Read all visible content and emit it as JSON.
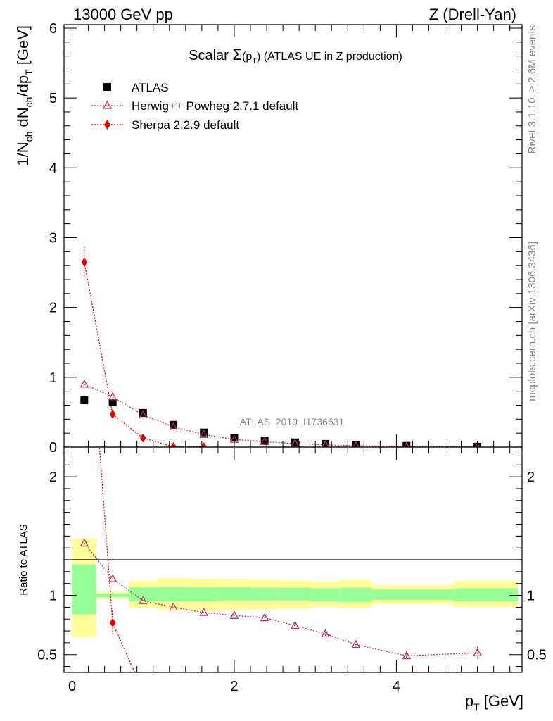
{
  "header": {
    "left": "13000 GeV pp",
    "right": "Z (Drell-Yan)"
  },
  "main_title": {
    "prefix": "Scalar ",
    "sigma": "Σ",
    "arg_open": "(p",
    "arg_sub": "T",
    "arg_close": ")",
    "suffix": " (ATLAS UE in Z production)"
  },
  "side_labels": {
    "rivet": "Rivet 3.1.10, ≥ 2.6M events",
    "mcplots": "mcplots.cern.ch [arXiv:1306.3436]"
  },
  "watermark": "ATLAS_2019_I1736531",
  "y_axis_label": {
    "a": "1/N",
    "a_sub": "ch",
    "b": " dN",
    "b_sub": "ch",
    "c": "/dp",
    "c_sub": "T",
    "d": " [GeV]"
  },
  "ratio_ylabel": "Ratio to ATLAS",
  "x_axis_label": {
    "main": "p",
    "sub": "T",
    "unit": " [GeV]"
  },
  "legend": {
    "atlas": "ATLAS",
    "herwig": "Herwig++ Powheg 2.7.1 default",
    "sherpa": "Sherpa 2.2.9 default"
  },
  "colors": {
    "data": "#000000",
    "herwig": "#c03060",
    "sherpa": "#e00000",
    "band_inner": "#99ff99",
    "band_outer": "#ffff99"
  },
  "chart_data": {
    "type": "scatter",
    "x_ticks": [
      "0",
      "2",
      "4"
    ],
    "xlim": [
      -0.1,
      5.55
    ],
    "main": {
      "ylim": [
        0,
        6.05
      ],
      "y_ticks": [
        "0",
        "1",
        "2",
        "3",
        "4",
        "5",
        "6"
      ],
      "atlas": {
        "name": "ATLAS",
        "x": [
          0.15,
          0.5,
          0.875,
          1.25,
          1.625,
          2.0,
          2.375,
          2.75,
          3.125,
          3.5,
          4.125,
          5.0
        ],
        "y": [
          0.67,
          0.64,
          0.49,
          0.32,
          0.21,
          0.135,
          0.095,
          0.068,
          0.047,
          0.032,
          0.018,
          0.006
        ],
        "bins": [
          [
            0.0,
            0.3
          ],
          [
            0.3,
            0.7
          ],
          [
            0.7,
            1.05
          ],
          [
            1.05,
            1.45
          ],
          [
            1.45,
            1.8
          ],
          [
            1.8,
            2.2
          ],
          [
            2.2,
            2.55
          ],
          [
            2.55,
            2.95
          ],
          [
            2.95,
            3.3
          ],
          [
            3.3,
            3.7
          ],
          [
            3.7,
            4.7
          ],
          [
            4.7,
            5.5
          ]
        ]
      },
      "herwig": {
        "name": "Herwig++ Powheg 2.7.1 default",
        "x": [
          0.15,
          0.5,
          0.875,
          1.25,
          1.625,
          2.0,
          2.375,
          2.75,
          3.125,
          3.5,
          4.125,
          5.0
        ],
        "y": [
          0.9,
          0.72,
          0.46,
          0.29,
          0.18,
          0.11,
          0.077,
          0.05,
          0.032,
          0.019,
          0.009,
          0.003
        ]
      },
      "sherpa": {
        "name": "Sherpa 2.2.9 default",
        "x": [
          0.15,
          0.5,
          0.875,
          1.25,
          1.625
        ],
        "y": [
          2.65,
          0.47,
          0.13,
          0.005,
          0.003
        ],
        "err": [
          0.22,
          0.05,
          0.02,
          0.005,
          0.003
        ]
      }
    },
    "ratio": {
      "ylim": [
        0.35,
        2.25
      ],
      "y_ticks": [
        "0.5",
        "1",
        "2"
      ],
      "band_inner": [
        [
          0.84,
          1.26
        ],
        [
          0.985,
          1.015
        ],
        [
          0.95,
          1.07
        ],
        [
          0.95,
          1.07
        ],
        [
          0.95,
          1.07
        ],
        [
          0.955,
          1.07
        ],
        [
          0.955,
          1.065
        ],
        [
          0.955,
          1.065
        ],
        [
          0.95,
          1.06
        ],
        [
          0.945,
          1.065
        ],
        [
          0.96,
          1.05
        ],
        [
          0.95,
          1.06
        ]
      ],
      "band_outer": [
        [
          0.65,
          1.48
        ],
        [
          0.97,
          1.03
        ],
        [
          0.89,
          1.12
        ],
        [
          0.875,
          1.145
        ],
        [
          0.87,
          1.14
        ],
        [
          0.875,
          1.135
        ],
        [
          0.88,
          1.13
        ],
        [
          0.885,
          1.125
        ],
        [
          0.9,
          1.115
        ],
        [
          0.89,
          1.13
        ],
        [
          0.925,
          1.085
        ],
        [
          0.9,
          1.12
        ]
      ],
      "herwig": [
        1.44,
        1.14,
        0.955,
        0.9,
        0.855,
        0.83,
        0.81,
        0.745,
        0.675,
        0.585,
        0.49,
        0.515
      ],
      "herwig_err": [
        0.0,
        0.0,
        0.0,
        0.0,
        0.0,
        0.0,
        0.0,
        0.015,
        0.02,
        0.03,
        0.02,
        0.05
      ],
      "sherpa": [
        null,
        0.77,
        null,
        null,
        null,
        null,
        null,
        null,
        null,
        null,
        null,
        null
      ],
      "sherpa_err": [
        0.0,
        0.1,
        0.0,
        0.0,
        0.0,
        0.0,
        0.0,
        0.0,
        0.0,
        0.0,
        0.0,
        0.0
      ],
      "sherpa_line_x": [
        0.15,
        0.5,
        0.875
      ],
      "sherpa_line_y": [
        3.95,
        0.77,
        0.19
      ]
    }
  }
}
